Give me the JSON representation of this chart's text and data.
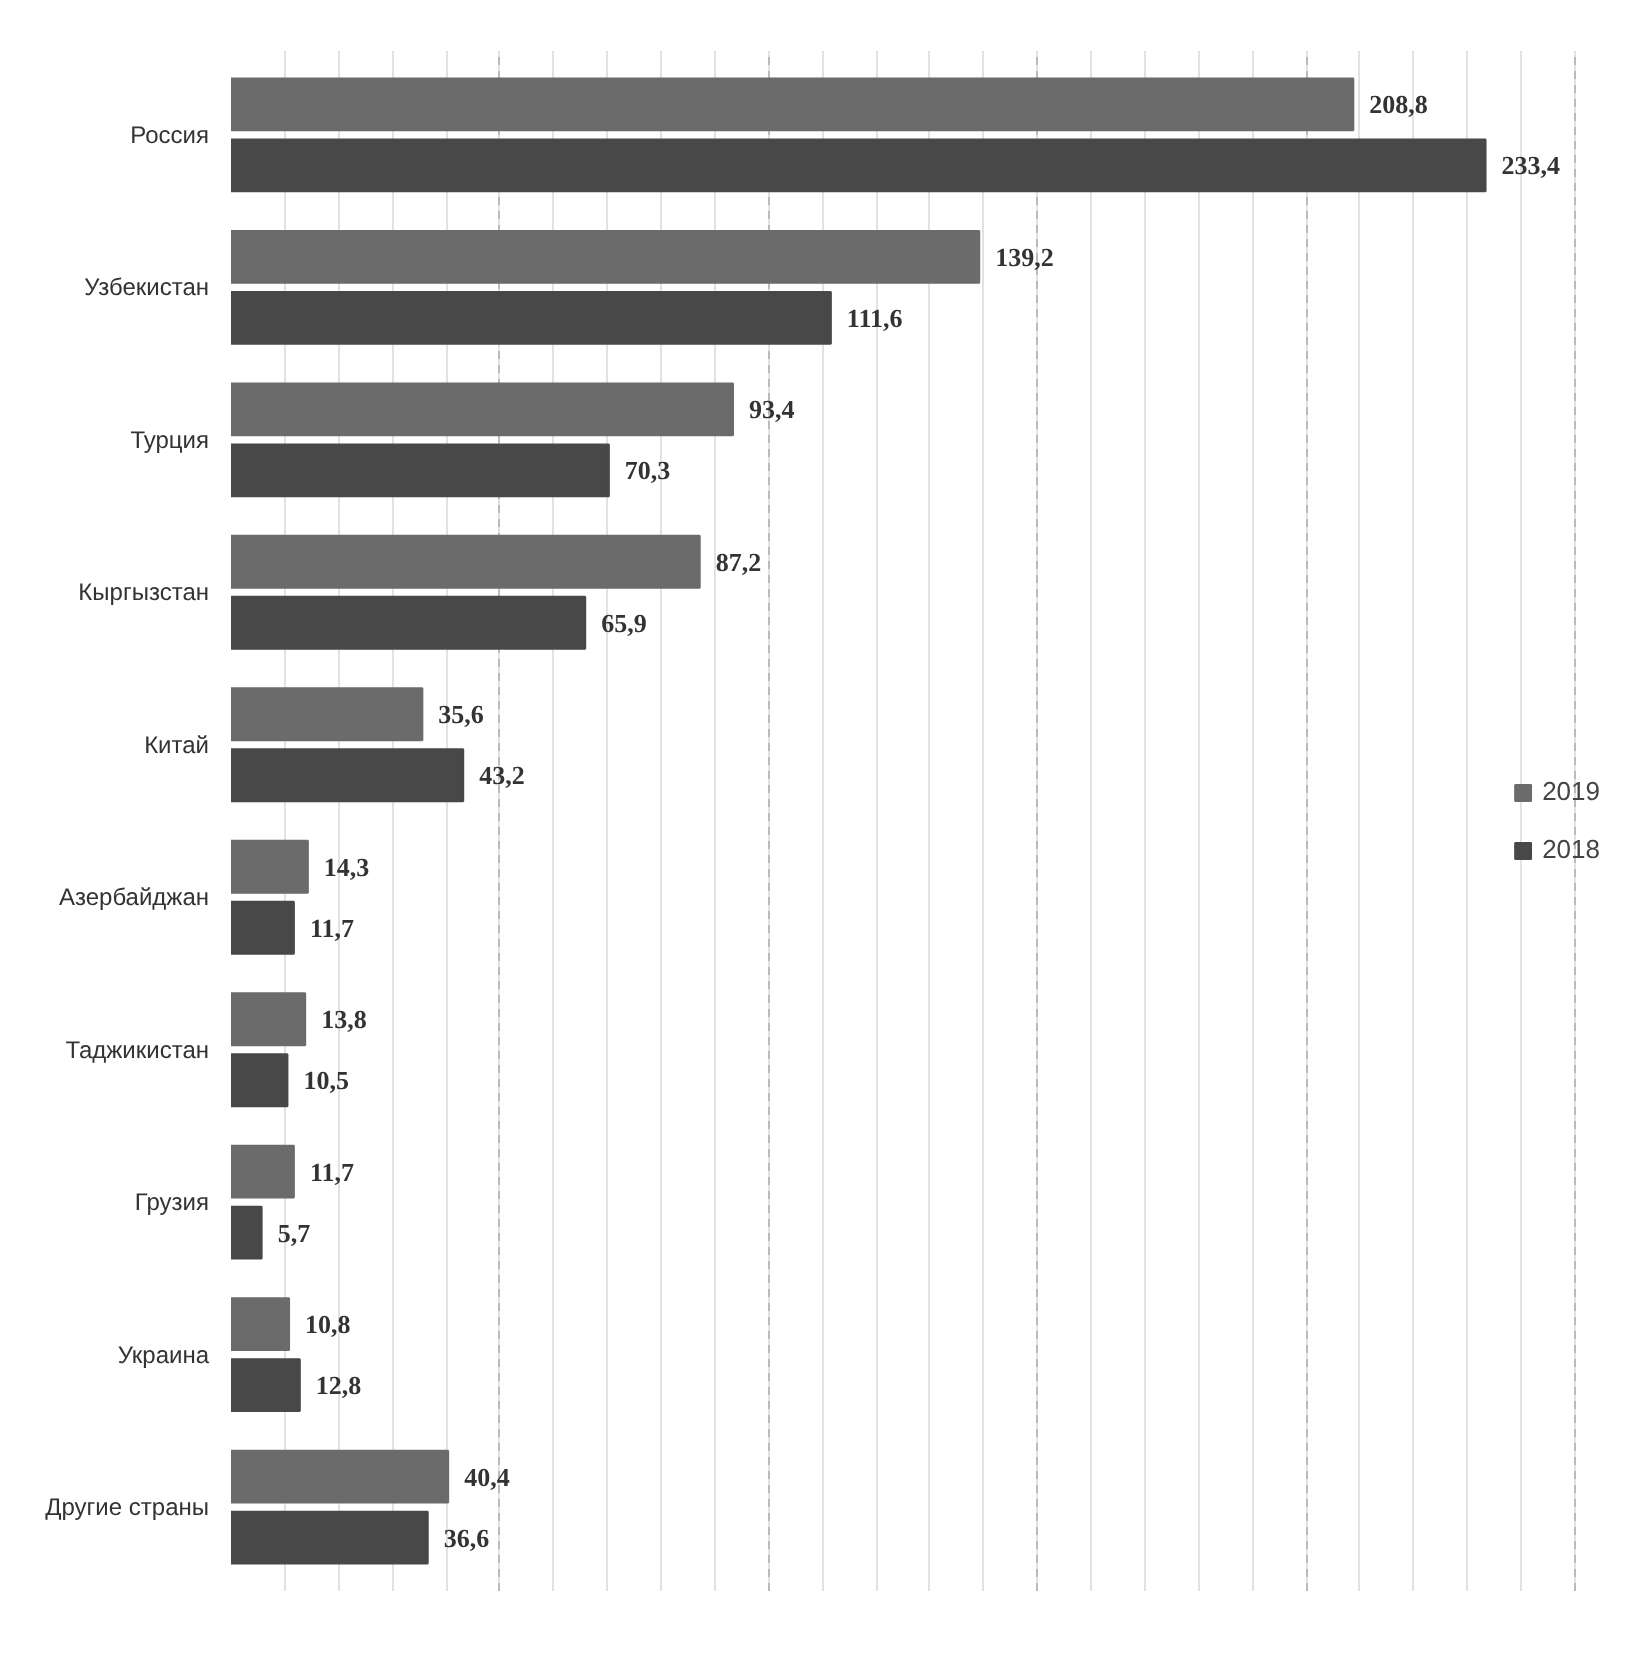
{
  "chart_data": {
    "type": "bar",
    "orientation": "horizontal",
    "categories": [
      "Россия",
      "Узбекистан",
      "Турция",
      "Кыргызстан",
      "Китай",
      "Азербайджан",
      "Таджикистан",
      "Грузия",
      "Украина",
      "Другие страны"
    ],
    "series": [
      {
        "name": "2019",
        "color": "#6b6b6b",
        "values": [
          208.8,
          139.2,
          93.4,
          87.2,
          35.6,
          14.3,
          13.8,
          11.7,
          10.8,
          40.4
        ],
        "value_labels": [
          "208,8",
          "139,2",
          "93,4",
          "87,2",
          "35,6",
          "14,3",
          "13,8",
          "11,7",
          "10,8",
          "40,4"
        ]
      },
      {
        "name": "2018",
        "color": "#484848",
        "values": [
          233.4,
          111.6,
          70.3,
          65.9,
          43.2,
          11.7,
          10.5,
          5.7,
          12.8,
          36.6
        ],
        "value_labels": [
          "233,4",
          "111,6",
          "70,3",
          "65,9",
          "43,2",
          "11,7",
          "10,5",
          "5,7",
          "12,8",
          "36,6"
        ]
      }
    ],
    "tick_labels": false,
    "grid": "x",
    "legend": "right"
  }
}
